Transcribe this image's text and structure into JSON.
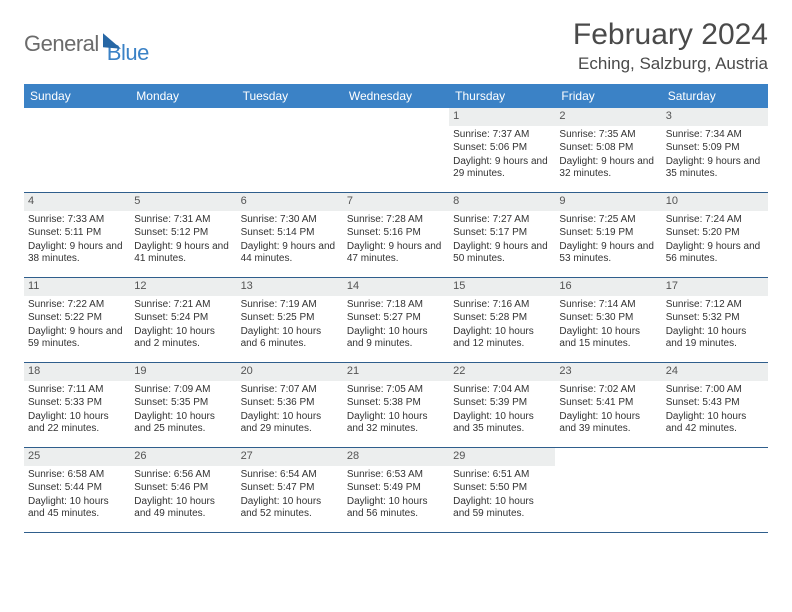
{
  "logo": {
    "part1": "General",
    "part2": "Blue"
  },
  "title": "February 2024",
  "location": "Eching, Salzburg, Austria",
  "colors": {
    "header_bg": "#3b82c6",
    "header_text": "#ffffff",
    "daynum_bg": "#eceeee",
    "divider": "#2f5e8c",
    "body_text": "#333333",
    "title_text": "#4a4a4a",
    "logo_gray": "#6b6b6b",
    "logo_blue": "#3b82c6"
  },
  "day_labels": [
    "Sunday",
    "Monday",
    "Tuesday",
    "Wednesday",
    "Thursday",
    "Friday",
    "Saturday"
  ],
  "weeks": [
    [
      null,
      null,
      null,
      null,
      {
        "n": "1",
        "sr": "7:37 AM",
        "ss": "5:06 PM",
        "dl": "9 hours and 29 minutes."
      },
      {
        "n": "2",
        "sr": "7:35 AM",
        "ss": "5:08 PM",
        "dl": "9 hours and 32 minutes."
      },
      {
        "n": "3",
        "sr": "7:34 AM",
        "ss": "5:09 PM",
        "dl": "9 hours and 35 minutes."
      }
    ],
    [
      {
        "n": "4",
        "sr": "7:33 AM",
        "ss": "5:11 PM",
        "dl": "9 hours and 38 minutes."
      },
      {
        "n": "5",
        "sr": "7:31 AM",
        "ss": "5:12 PM",
        "dl": "9 hours and 41 minutes."
      },
      {
        "n": "6",
        "sr": "7:30 AM",
        "ss": "5:14 PM",
        "dl": "9 hours and 44 minutes."
      },
      {
        "n": "7",
        "sr": "7:28 AM",
        "ss": "5:16 PM",
        "dl": "9 hours and 47 minutes."
      },
      {
        "n": "8",
        "sr": "7:27 AM",
        "ss": "5:17 PM",
        "dl": "9 hours and 50 minutes."
      },
      {
        "n": "9",
        "sr": "7:25 AM",
        "ss": "5:19 PM",
        "dl": "9 hours and 53 minutes."
      },
      {
        "n": "10",
        "sr": "7:24 AM",
        "ss": "5:20 PM",
        "dl": "9 hours and 56 minutes."
      }
    ],
    [
      {
        "n": "11",
        "sr": "7:22 AM",
        "ss": "5:22 PM",
        "dl": "9 hours and 59 minutes."
      },
      {
        "n": "12",
        "sr": "7:21 AM",
        "ss": "5:24 PM",
        "dl": "10 hours and 2 minutes."
      },
      {
        "n": "13",
        "sr": "7:19 AM",
        "ss": "5:25 PM",
        "dl": "10 hours and 6 minutes."
      },
      {
        "n": "14",
        "sr": "7:18 AM",
        "ss": "5:27 PM",
        "dl": "10 hours and 9 minutes."
      },
      {
        "n": "15",
        "sr": "7:16 AM",
        "ss": "5:28 PM",
        "dl": "10 hours and 12 minutes."
      },
      {
        "n": "16",
        "sr": "7:14 AM",
        "ss": "5:30 PM",
        "dl": "10 hours and 15 minutes."
      },
      {
        "n": "17",
        "sr": "7:12 AM",
        "ss": "5:32 PM",
        "dl": "10 hours and 19 minutes."
      }
    ],
    [
      {
        "n": "18",
        "sr": "7:11 AM",
        "ss": "5:33 PM",
        "dl": "10 hours and 22 minutes."
      },
      {
        "n": "19",
        "sr": "7:09 AM",
        "ss": "5:35 PM",
        "dl": "10 hours and 25 minutes."
      },
      {
        "n": "20",
        "sr": "7:07 AM",
        "ss": "5:36 PM",
        "dl": "10 hours and 29 minutes."
      },
      {
        "n": "21",
        "sr": "7:05 AM",
        "ss": "5:38 PM",
        "dl": "10 hours and 32 minutes."
      },
      {
        "n": "22",
        "sr": "7:04 AM",
        "ss": "5:39 PM",
        "dl": "10 hours and 35 minutes."
      },
      {
        "n": "23",
        "sr": "7:02 AM",
        "ss": "5:41 PM",
        "dl": "10 hours and 39 minutes."
      },
      {
        "n": "24",
        "sr": "7:00 AM",
        "ss": "5:43 PM",
        "dl": "10 hours and 42 minutes."
      }
    ],
    [
      {
        "n": "25",
        "sr": "6:58 AM",
        "ss": "5:44 PM",
        "dl": "10 hours and 45 minutes."
      },
      {
        "n": "26",
        "sr": "6:56 AM",
        "ss": "5:46 PM",
        "dl": "10 hours and 49 minutes."
      },
      {
        "n": "27",
        "sr": "6:54 AM",
        "ss": "5:47 PM",
        "dl": "10 hours and 52 minutes."
      },
      {
        "n": "28",
        "sr": "6:53 AM",
        "ss": "5:49 PM",
        "dl": "10 hours and 56 minutes."
      },
      {
        "n": "29",
        "sr": "6:51 AM",
        "ss": "5:50 PM",
        "dl": "10 hours and 59 minutes."
      },
      null,
      null
    ]
  ],
  "labels": {
    "sunrise": "Sunrise:",
    "sunset": "Sunset:",
    "daylight": "Daylight:"
  }
}
